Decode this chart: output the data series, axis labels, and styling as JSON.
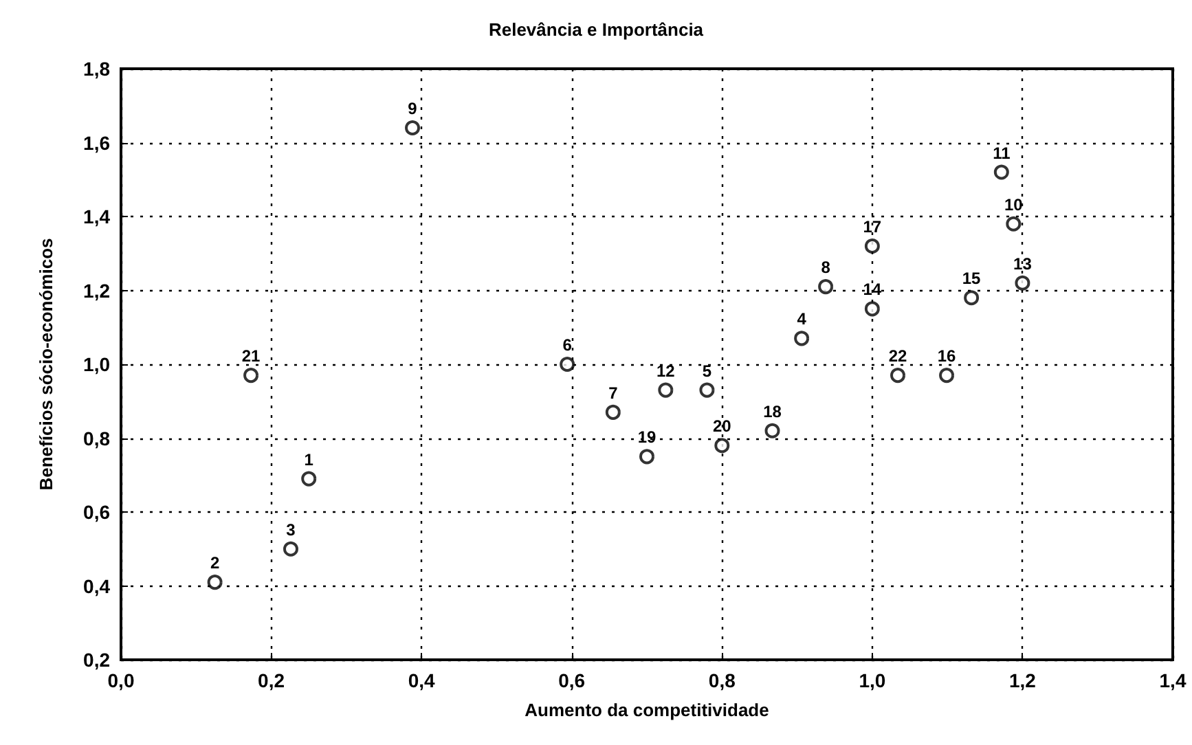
{
  "chart_data": {
    "type": "scatter",
    "title": "Relevância e Importância",
    "xlabel": "Aumento da competitividade",
    "ylabel": "Benefícios sócio-económicos",
    "x": [
      0.25,
      0.125,
      0.226,
      0.906,
      0.78,
      0.594,
      0.655,
      0.938,
      0.388,
      1.188,
      1.172,
      0.725,
      1.2,
      1.0,
      1.132,
      1.099,
      1.0,
      0.867,
      0.7,
      0.8,
      0.173,
      1.034
    ],
    "values": [
      0.69,
      0.41,
      0.5,
      1.07,
      0.93,
      1.0,
      0.87,
      1.21,
      1.64,
      1.38,
      1.52,
      0.93,
      1.22,
      1.15,
      1.18,
      0.97,
      1.32,
      0.82,
      0.75,
      0.78,
      0.97,
      0.97
    ],
    "annotations": [
      {
        "text": "1",
        "x": 0.25,
        "y": 0.69
      },
      {
        "text": "2",
        "x": 0.125,
        "y": 0.41
      },
      {
        "text": "3",
        "x": 0.226,
        "y": 0.5
      },
      {
        "text": "4",
        "x": 0.906,
        "y": 1.07
      },
      {
        "text": "5",
        "x": 0.78,
        "y": 0.93
      },
      {
        "text": "6",
        "x": 0.594,
        "y": 1.0
      },
      {
        "text": "7",
        "x": 0.655,
        "y": 0.87
      },
      {
        "text": "8",
        "x": 0.938,
        "y": 1.21
      },
      {
        "text": "9",
        "x": 0.388,
        "y": 1.64
      },
      {
        "text": "10",
        "x": 1.188,
        "y": 1.38
      },
      {
        "text": "11",
        "x": 1.172,
        "y": 1.52
      },
      {
        "text": "12",
        "x": 0.725,
        "y": 0.93
      },
      {
        "text": "13",
        "x": 1.2,
        "y": 1.22
      },
      {
        "text": "14",
        "x": 1.0,
        "y": 1.15
      },
      {
        "text": "15",
        "x": 1.132,
        "y": 1.18
      },
      {
        "text": "16",
        "x": 1.099,
        "y": 0.97
      },
      {
        "text": "17",
        "x": 1.0,
        "y": 1.32
      },
      {
        "text": "18",
        "x": 0.867,
        "y": 0.82
      },
      {
        "text": "19",
        "x": 0.7,
        "y": 0.75
      },
      {
        "text": "20",
        "x": 0.8,
        "y": 0.78
      },
      {
        "text": "21",
        "x": 0.173,
        "y": 0.97
      },
      {
        "text": "22",
        "x": 1.034,
        "y": 0.97
      }
    ],
    "color": "#000000",
    "marker": "circle",
    "xlim": [
      0,
      1.4
    ],
    "xticks": [
      {
        "value": 0,
        "label": "0,0"
      },
      {
        "value": 0.2,
        "label": "0,2"
      },
      {
        "value": 0.4,
        "label": "0,4"
      },
      {
        "value": 0.6,
        "label": "0,6"
      },
      {
        "value": 0.8,
        "label": "0,8"
      },
      {
        "value": 1.0,
        "label": "1,0"
      },
      {
        "value": 1.2,
        "label": "1,2"
      },
      {
        "value": 1.4,
        "label": "1,4"
      }
    ],
    "ylim": [
      0.2,
      1.8
    ],
    "yticks": [
      {
        "value": 0.2,
        "label": "0,2"
      },
      {
        "value": 0.4,
        "label": "0,4"
      },
      {
        "value": 0.6,
        "label": "0,6"
      },
      {
        "value": 0.8,
        "label": "0,8"
      },
      {
        "value": 1.0,
        "label": "1,0"
      },
      {
        "value": 1.2,
        "label": "1,2"
      },
      {
        "value": 1.4,
        "label": "1,4"
      },
      {
        "value": 1.6,
        "label": "1,6"
      },
      {
        "value": 1.8,
        "label": "1,8"
      }
    ],
    "grid": true
  }
}
